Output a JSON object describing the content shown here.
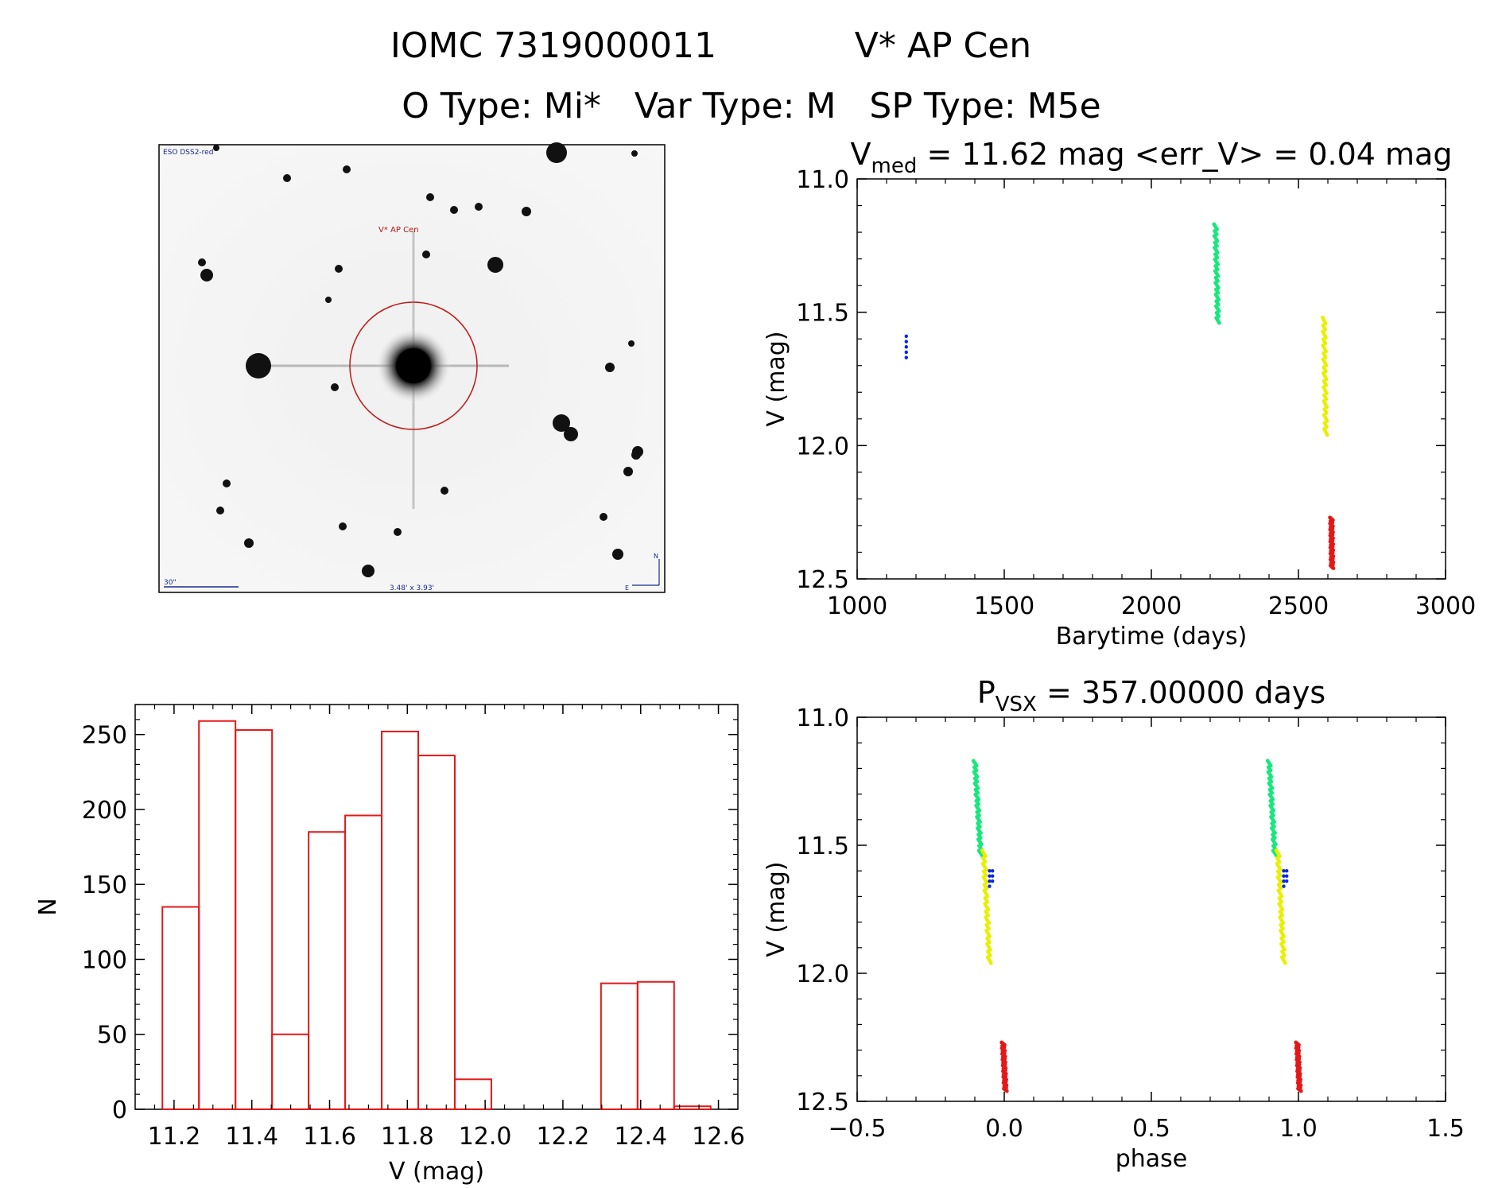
{
  "header": {
    "line1_id": "IOMC 7319000011",
    "line1_name": "V* AP Cen",
    "line2": "O Type: Mi*   Var Type: M   SP Type: M5e"
  },
  "thumbnail": {
    "survey_label": "ESO DSS2-red",
    "target_label": "V* AP Cen",
    "scale_label": "30\"",
    "fov_label": "3.48' x 3.93'",
    "compass_n": "N",
    "compass_e": "E"
  },
  "chart_data": [
    {
      "id": "lightcurve",
      "type": "scatter",
      "title_prefix": "V",
      "title_sub": "med",
      "title_rest": " = 11.62 mag <err_V> = 0.04 mag",
      "xlabel": "Barytime (days)",
      "ylabel": "V (mag)",
      "xlim": [
        1000,
        3000
      ],
      "ylim": [
        12.5,
        11.0
      ],
      "xticks": [
        1000,
        1500,
        2000,
        2500,
        3000
      ],
      "yticks": [
        11.0,
        11.5,
        12.0,
        12.5
      ],
      "series": [
        {
          "name": "blue",
          "color": "#0b24e8",
          "points": [
            [
              1167,
              11.59
            ],
            [
              1167,
              11.61
            ],
            [
              1167,
              11.63
            ],
            [
              1167,
              11.65
            ],
            [
              1167,
              11.67
            ]
          ]
        },
        {
          "name": "green",
          "color": "#16e87c",
          "segment": {
            "x": [
              2218,
              2226
            ],
            "y": [
              11.17,
              11.54
            ]
          }
        },
        {
          "name": "yellow",
          "color": "#e8f000",
          "segment": {
            "x": [
              2587,
              2593
            ],
            "y": [
              11.52,
              11.96
            ]
          }
        },
        {
          "name": "red",
          "color": "#e41818",
          "segment": {
            "x": [
              2612,
              2614
            ],
            "y": [
              12.27,
              12.46
            ]
          }
        }
      ]
    },
    {
      "id": "histogram",
      "type": "bar",
      "xlabel": "V (mag)",
      "ylabel": "N",
      "xlim": [
        11.1,
        12.65
      ],
      "ylim": [
        0,
        270
      ],
      "xticks": [
        11.2,
        11.4,
        11.6,
        11.8,
        12.0,
        12.2,
        12.4,
        12.6
      ],
      "yticks": [
        0,
        50,
        100,
        150,
        200,
        250
      ],
      "color": "#e41818",
      "bin_edges": [
        11.17,
        11.264,
        11.358,
        11.452,
        11.546,
        11.64,
        11.734,
        11.828,
        11.922,
        12.016,
        12.11,
        12.204,
        12.298,
        12.392,
        12.486,
        12.58
      ],
      "values": [
        135,
        259,
        253,
        50,
        185,
        196,
        252,
        236,
        20,
        0,
        0,
        0,
        84,
        85,
        2
      ]
    },
    {
      "id": "phased",
      "type": "scatter",
      "title_prefix": "P",
      "title_sub": "VSX",
      "title_rest": " = 357.00000 days",
      "xlabel": "phase",
      "ylabel": "V (mag)",
      "xlim": [
        -0.5,
        1.5
      ],
      "ylim": [
        12.5,
        11.0
      ],
      "xticks": [
        -0.5,
        0.0,
        0.5,
        1.0,
        1.5
      ],
      "yticks": [
        11.0,
        11.5,
        12.0,
        12.5
      ],
      "series": [
        {
          "name": "green",
          "color": "#16e87c",
          "segment": {
            "x": [
              -0.1,
              -0.08
            ],
            "y": [
              11.17,
              11.54
            ]
          }
        },
        {
          "name": "yellow",
          "color": "#e8f000",
          "segment": {
            "x": [
              -0.07,
              -0.05
            ],
            "y": [
              11.52,
              11.96
            ]
          }
        },
        {
          "name": "red",
          "color": "#e41818",
          "segment": {
            "x": [
              -0.004,
              0.004
            ],
            "y": [
              12.27,
              12.46
            ]
          }
        },
        {
          "name": "blue",
          "color": "#0b24e8",
          "points": [
            [
              -0.05,
              11.6
            ],
            [
              -0.05,
              11.62
            ],
            [
              -0.05,
              11.64
            ],
            [
              -0.05,
              11.66
            ],
            [
              -0.04,
              11.6
            ],
            [
              -0.04,
              11.62
            ],
            [
              -0.04,
              11.64
            ]
          ]
        }
      ],
      "wrap_offset": 1.0
    }
  ]
}
